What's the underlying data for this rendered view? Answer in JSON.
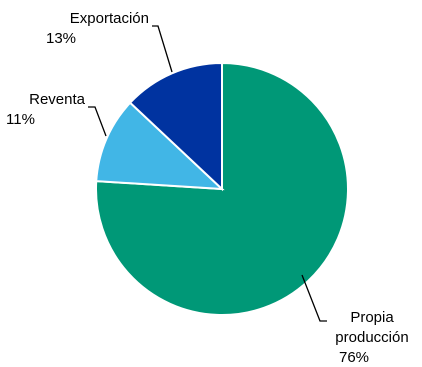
{
  "chart_data": {
    "type": "pie",
    "title": "",
    "start_angle_deg": 0,
    "direction": "clockwise",
    "slices": [
      {
        "name": "Propia producción",
        "label_lines": [
          "Propia",
          "producción"
        ],
        "value": 76,
        "pct_label": "76%",
        "color": "#009877"
      },
      {
        "name": "Reventa",
        "label_lines": [
          "Reventa"
        ],
        "value": 11,
        "pct_label": "11%",
        "color": "#41b6e6"
      },
      {
        "name": "Exportación",
        "label_lines": [
          "Exportación"
        ],
        "value": 13,
        "pct_label": "13%",
        "color": "#0033a0"
      }
    ]
  }
}
